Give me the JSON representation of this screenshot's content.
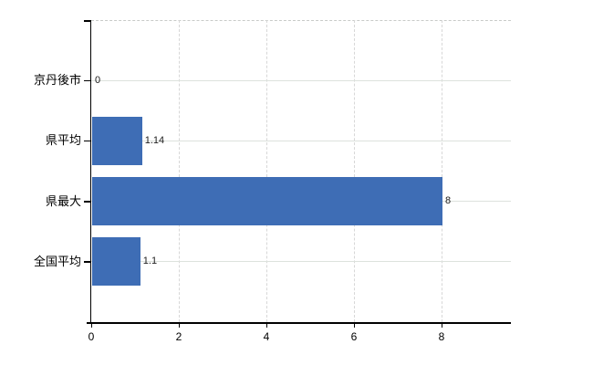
{
  "chart_data": {
    "type": "bar",
    "orientation": "horizontal",
    "title": "",
    "categories": [
      "京丹後市",
      "県平均",
      "県最大",
      "全国平均"
    ],
    "values": [
      0,
      1.14,
      8,
      1.1
    ],
    "value_labels": [
      "0",
      "1.14",
      "8",
      "1.1"
    ],
    "x_ticks": [
      0,
      2,
      4,
      6,
      8
    ],
    "x_tick_labels": [
      "0",
      "2",
      "4",
      "6",
      "8"
    ],
    "xlim": [
      0,
      9.58
    ],
    "grid": true,
    "legend": false,
    "colors": {
      "bar": "#3e6db5",
      "axis": "#000000",
      "vertical_gridline": "#d7d7d7",
      "horizontal_gridline": "#dde2dd",
      "plot_top_border": "#c8cbc8",
      "background": "#ffffff",
      "text": "#000000"
    }
  }
}
